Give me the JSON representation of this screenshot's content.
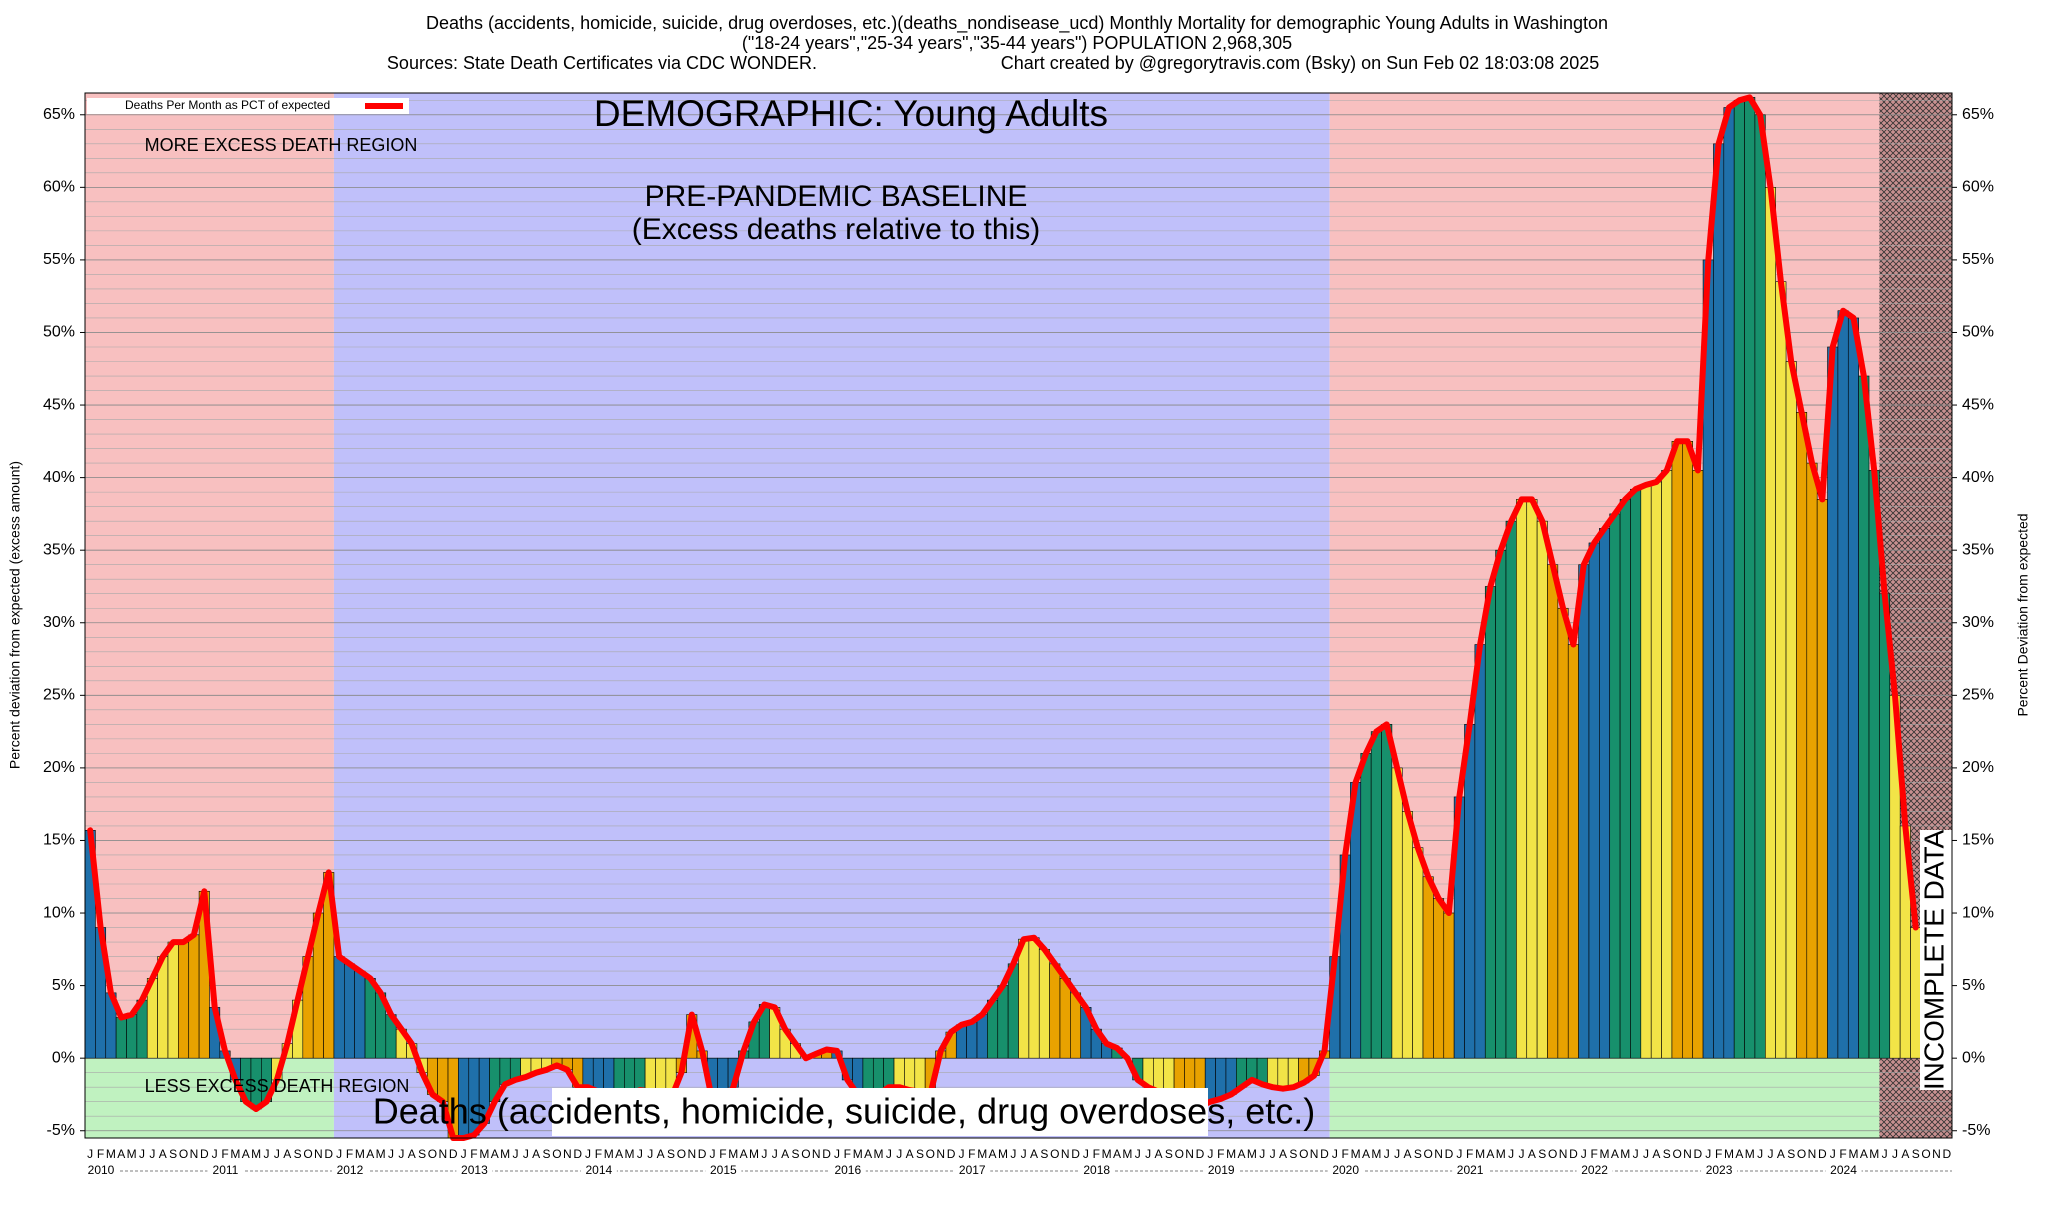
{
  "chart_data": {
    "type": "bar",
    "title": "Deaths (accidents, homicide, suicide, drug overdoses, etc.)(deaths_nondisease_ucd) Monthly Mortality for demographic Young Adults in Washington",
    "subtitle": "(\"18-24 years\",\"25-34 years\",\"35-44 years\") POPULATION 2,968,305",
    "source": "Sources: State Death Certificates via CDC WONDER.",
    "credit": "Chart created by @gregorytravis.com (Bsky) on Sun Feb 02 18:03:08 2025",
    "y_label": "Percent deviation from expected (excess amount)",
    "y2_label": "Percent Deviation from expected",
    "annotations": [
      "DEMOGRAPHIC: Young Adults",
      "PRE-PANDEMIC BASELINE",
      "(Excess deaths relative to this)",
      "MORE EXCESS DEATH REGION",
      "LESS EXCESS DEATH REGION",
      "Deaths (accidents, homicide, suicide, drug overdoses, etc.)",
      "INCOMPLETE DATA"
    ],
    "years": [
      "2010",
      "2011",
      "2012",
      "2013",
      "2014",
      "2015",
      "2016",
      "2017",
      "2018",
      "2019",
      "2020",
      "2021",
      "2022",
      "2023",
      "2024"
    ],
    "categories": [
      "J",
      "F",
      "M",
      "A",
      "M",
      "J",
      "J",
      "A",
      "S",
      "O",
      "N",
      "D",
      "J",
      "F",
      "M",
      "A",
      "M",
      "J",
      "J",
      "A",
      "S",
      "O",
      "N",
      "D",
      "J",
      "F",
      "M",
      "A",
      "M",
      "J",
      "J",
      "A",
      "S",
      "O",
      "N",
      "D",
      "J",
      "F",
      "M",
      "A",
      "M",
      "J",
      "J",
      "A",
      "S",
      "O",
      "N",
      "D",
      "J",
      "F",
      "M",
      "A",
      "M",
      "J",
      "J",
      "A",
      "S",
      "O",
      "N",
      "D",
      "J",
      "F",
      "M",
      "A",
      "M",
      "J",
      "J",
      "A",
      "S",
      "O",
      "N",
      "D",
      "J",
      "F",
      "M",
      "A",
      "M",
      "J",
      "J",
      "A",
      "S",
      "O",
      "N",
      "D",
      "J",
      "F",
      "M",
      "A",
      "M",
      "J",
      "J",
      "A",
      "S",
      "O",
      "N",
      "D",
      "J",
      "F",
      "M",
      "A",
      "M",
      "J",
      "J",
      "A",
      "S",
      "O",
      "N",
      "D",
      "J",
      "F",
      "M",
      "A",
      "M",
      "J",
      "J",
      "A",
      "S",
      "O",
      "N",
      "D",
      "J",
      "F",
      "M",
      "A",
      "M",
      "J",
      "J",
      "A",
      "S",
      "O",
      "N",
      "D",
      "J",
      "F",
      "M",
      "A",
      "M",
      "J",
      "J",
      "A",
      "S",
      "O",
      "N",
      "D",
      "J",
      "F",
      "M",
      "A",
      "M",
      "J",
      "J",
      "A",
      "S",
      "O",
      "N",
      "D",
      "J",
      "F",
      "M",
      "A",
      "M",
      "J",
      "J",
      "A",
      "S",
      "O",
      "N",
      "D",
      "J",
      "F",
      "M",
      "A",
      "M",
      "J",
      "J",
      "A",
      "S",
      "O",
      "N",
      "D"
    ],
    "series": [
      {
        "name": "Deaths Per Month as PCT of expected",
        "color": "#ff0000",
        "values": [
          15.7,
          9,
          4.5,
          2.8,
          3,
          4,
          5.5,
          7,
          8,
          8,
          8.5,
          11.5,
          3.5,
          0.5,
          -1.5,
          -3,
          -3.5,
          -3,
          -1.5,
          1,
          4,
          7,
          10,
          12.8,
          7,
          6.5,
          6,
          5.5,
          4.5,
          3,
          2,
          1,
          -1,
          -2.5,
          -3,
          -5.5,
          -5.5,
          -5.3,
          -4.5,
          -3,
          -1.8,
          -1.5,
          -1.3,
          -1,
          -0.8,
          -0.5,
          -0.8,
          -2,
          -2,
          -2.3,
          -2.5,
          -2.5,
          -2.5,
          -2.2,
          -2.3,
          -2.5,
          -2.8,
          -1,
          3,
          0.5,
          -3,
          -4,
          -2,
          0.5,
          2.5,
          3.7,
          3.5,
          2,
          1,
          0,
          0.3,
          0.6,
          0.5,
          -1.5,
          -2.5,
          -3,
          -2.5,
          -2,
          -2,
          -2.2,
          -2.3,
          -2.5,
          0.5,
          1.8,
          2.3,
          2.5,
          3,
          4,
          5,
          6.5,
          8.2,
          8.3,
          7.5,
          6.5,
          5.5,
          4.5,
          3.5,
          2,
          1,
          0.7,
          0,
          -1.5,
          -2,
          -2.3,
          -2.5,
          -2.8,
          -3.1,
          -3.3,
          -3,
          -2.8,
          -2.5,
          -2,
          -1.5,
          -1.8,
          -2,
          -2.1,
          -2,
          -1.7,
          -1.2,
          0.5,
          7,
          14,
          19,
          21,
          22.5,
          23,
          20,
          17,
          14.5,
          12.5,
          11,
          10,
          18,
          23,
          28.5,
          32.5,
          35,
          37,
          38.5,
          38.5,
          37,
          34,
          31,
          28.5,
          34,
          35.5,
          36.5,
          37.5,
          38.5,
          39.2,
          39.5,
          39.7,
          40.5,
          42.5,
          42.5,
          40.5,
          55,
          63,
          65.5,
          66,
          66.2,
          65,
          60,
          53.5,
          48,
          44.5,
          41,
          38.5,
          49,
          51.5,
          51,
          47,
          40.5,
          32,
          25,
          16,
          9,
          null,
          null,
          null
        ]
      }
    ],
    "bar_colors": [
      "#1f70aa",
      "#17906c",
      "#f2e447",
      "#e8a200"
    ],
    "region_colors": {
      "excess": "#f8c0c0",
      "baseline": "#c0c0fa",
      "less": "#c0f2c0"
    },
    "ylim": [
      -5.5,
      66.5
    ],
    "yticks": [
      {
        "value": -5,
        "label": "-5%"
      },
      {
        "value": 0,
        "label": "0%"
      },
      {
        "value": 5,
        "label": "5%"
      },
      {
        "value": 10,
        "label": "10%"
      },
      {
        "value": 15,
        "label": "15%"
      },
      {
        "value": 20,
        "label": "20%"
      },
      {
        "value": 25,
        "label": "25%"
      },
      {
        "value": 30,
        "label": "30%"
      },
      {
        "value": 35,
        "label": "35%"
      },
      {
        "value": 40,
        "label": "40%"
      },
      {
        "value": 45,
        "label": "45%"
      },
      {
        "value": 50,
        "label": "50%"
      },
      {
        "value": 55,
        "label": "55%"
      },
      {
        "value": 60,
        "label": "60%"
      },
      {
        "value": 65,
        "label": "65%"
      }
    ],
    "grid": true,
    "legend": "top-left"
  }
}
